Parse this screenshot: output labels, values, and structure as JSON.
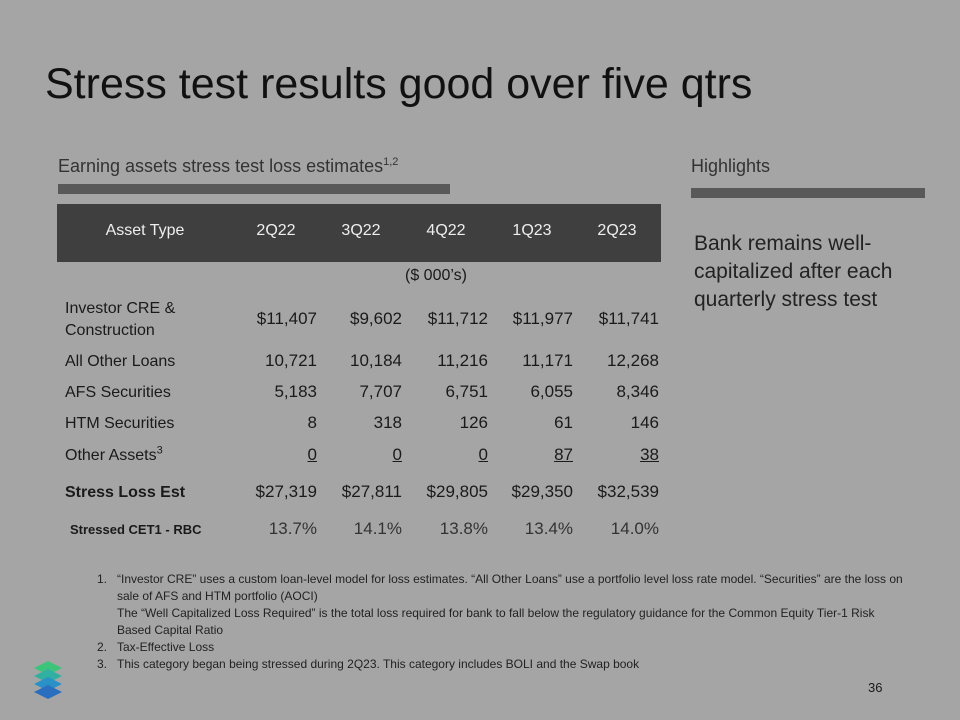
{
  "title": "Stress test results good over five qtrs",
  "left_heading": {
    "text": "Earning assets stress test loss estimates",
    "superscript": "1,2"
  },
  "highlights": {
    "heading": "Highlights",
    "text": "Bank remains well-capitalized after each quarterly stress test"
  },
  "table": {
    "headers": [
      "Asset Type",
      "2Q22",
      "3Q22",
      "4Q22",
      "1Q23",
      "2Q23"
    ],
    "units": "($ 000’s)",
    "rows": [
      {
        "label": "Investor CRE & Construction",
        "cells": [
          "$11,407",
          "$9,602",
          "$11,712",
          "$11,977",
          "$11,741"
        ]
      },
      {
        "label": "All Other Loans",
        "cells": [
          "10,721",
          "10,184",
          "11,216",
          "11,171",
          "12,268"
        ]
      },
      {
        "label": "AFS Securities",
        "cells": [
          "5,183",
          "7,707",
          "6,751",
          "6,055",
          "8,346"
        ]
      },
      {
        "label": "HTM Securities",
        "cells": [
          "8",
          "318",
          "126",
          "61",
          "146"
        ]
      },
      {
        "label": "Other Assets",
        "superscript": "3",
        "cells": [
          "0",
          "0",
          "0",
          "87",
          "38"
        ]
      },
      {
        "label": "Stress Loss Est",
        "cells": [
          "$27,319",
          "$27,811",
          "$29,805",
          "$29,350",
          "$32,539"
        ]
      },
      {
        "label": "Stressed CET1 - RBC",
        "cells": [
          "13.7%",
          "14.1%",
          "13.8%",
          "13.4%",
          "14.0%"
        ]
      }
    ]
  },
  "footnotes": [
    {
      "number": "1.",
      "lines": [
        "“Investor CRE” uses a custom loan-level model for loss estimates. “All Other Loans” use a portfolio level loss rate model. “Securities” are the loss on sale of AFS and HTM portfolio (AOCI)",
        "The “Well Capitalized Loss Required” is the total loss required for bank to fall below the regulatory guidance for the Common Equity Tier-1 Risk Based Capital Ratio"
      ]
    },
    {
      "number": "2.",
      "lines": [
        "Tax-Effective Loss"
      ]
    },
    {
      "number": "3.",
      "lines": [
        "This category began being stressed during 2Q23. This category includes BOLI and the Swap book"
      ]
    }
  ],
  "page_number": "36"
}
